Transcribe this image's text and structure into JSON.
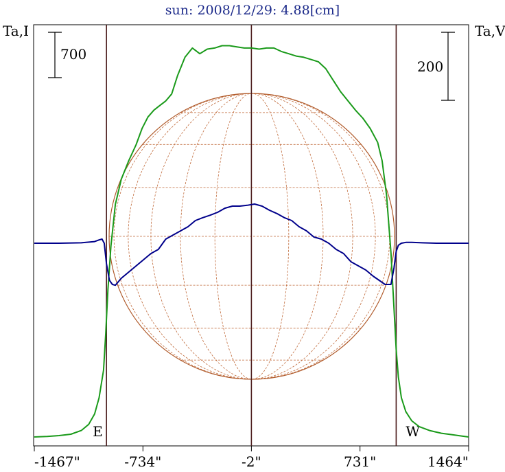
{
  "chart_data": {
    "type": "line",
    "title": "sun: 2008/12/29: 4.88[cm]",
    "left_axis_label": "Ta,I",
    "right_axis_label": "Ta,V",
    "left_scale_bar_label": "700",
    "left_scale_bar_value": 700,
    "right_scale_bar_label": "200",
    "right_scale_bar_value": 200,
    "xlabel": "",
    "x_range": [
      -1467,
      1464
    ],
    "x_tick_values": [
      -1467,
      -734,
      -2,
      731,
      1464
    ],
    "x_tick_labels": [
      "-1467\"",
      "-734\"",
      "-2\"",
      "731\"",
      "1464\""
    ],
    "limb_markers": [
      {
        "label": "E",
        "x": -980
      },
      {
        "label": "W",
        "x": 975
      }
    ],
    "center_marker_x": -2,
    "solar_disk": {
      "x_min": -950,
      "x_max": 950,
      "grid": true
    },
    "series": [
      {
        "color": "#1a9a1a",
        "x": [
          -1467,
          -1380,
          -1300,
          -1220,
          -1150,
          -1100,
          -1060,
          -1030,
          -1000,
          -985,
          -970,
          -950,
          -920,
          -880,
          -830,
          -780,
          -740,
          -700,
          -660,
          -620,
          -580,
          -540,
          -500,
          -450,
          -400,
          -350,
          -300,
          -250,
          -200,
          -150,
          -100,
          -50,
          0,
          50,
          100,
          150,
          200,
          250,
          300,
          350,
          400,
          450,
          500,
          550,
          600,
          650,
          700,
          750,
          800,
          850,
          880,
          910,
          940,
          960,
          975,
          990,
          1010,
          1040,
          1080,
          1130,
          1200,
          1280,
          1350,
          1420,
          1464
        ],
        "values": [
          0,
          2,
          6,
          12,
          28,
          55,
          100,
          170,
          290,
          450,
          640,
          830,
          1010,
          1120,
          1200,
          1270,
          1340,
          1390,
          1420,
          1440,
          1460,
          1490,
          1570,
          1650,
          1690,
          1665,
          1685,
          1690,
          1700,
          1700,
          1695,
          1690,
          1690,
          1685,
          1690,
          1690,
          1675,
          1665,
          1655,
          1650,
          1640,
          1630,
          1600,
          1550,
          1500,
          1460,
          1420,
          1385,
          1340,
          1280,
          1200,
          1050,
          800,
          560,
          380,
          260,
          170,
          110,
          70,
          45,
          28,
          16,
          10,
          4,
          0
        ]
      },
      {
        "color": "#00008b",
        "x": [
          -1467,
          -1300,
          -1150,
          -1060,
          -1030,
          -1010,
          -995,
          -980,
          -960,
          -940,
          -920,
          -880,
          -830,
          -780,
          -730,
          -680,
          -630,
          -580,
          -530,
          -480,
          -430,
          -380,
          -330,
          -280,
          -230,
          -180,
          -130,
          -80,
          -30,
          20,
          70,
          120,
          170,
          220,
          270,
          320,
          370,
          420,
          470,
          520,
          570,
          620,
          670,
          720,
          770,
          820,
          860,
          900,
          940,
          960,
          975,
          990,
          1010,
          1040,
          1080,
          1150,
          1250,
          1350,
          1464
        ],
        "values": [
          0,
          0,
          1,
          4,
          8,
          10,
          0,
          -50,
          -90,
          -100,
          -102,
          -85,
          -70,
          -55,
          -40,
          -25,
          -15,
          10,
          20,
          30,
          40,
          55,
          62,
          68,
          75,
          85,
          90,
          90,
          92,
          95,
          90,
          80,
          72,
          62,
          55,
          40,
          30,
          15,
          10,
          0,
          -15,
          -25,
          -45,
          -55,
          -65,
          -80,
          -90,
          -100,
          -100,
          -60,
          -20,
          -5,
          0,
          2,
          2,
          1,
          0,
          0,
          0
        ]
      }
    ]
  }
}
